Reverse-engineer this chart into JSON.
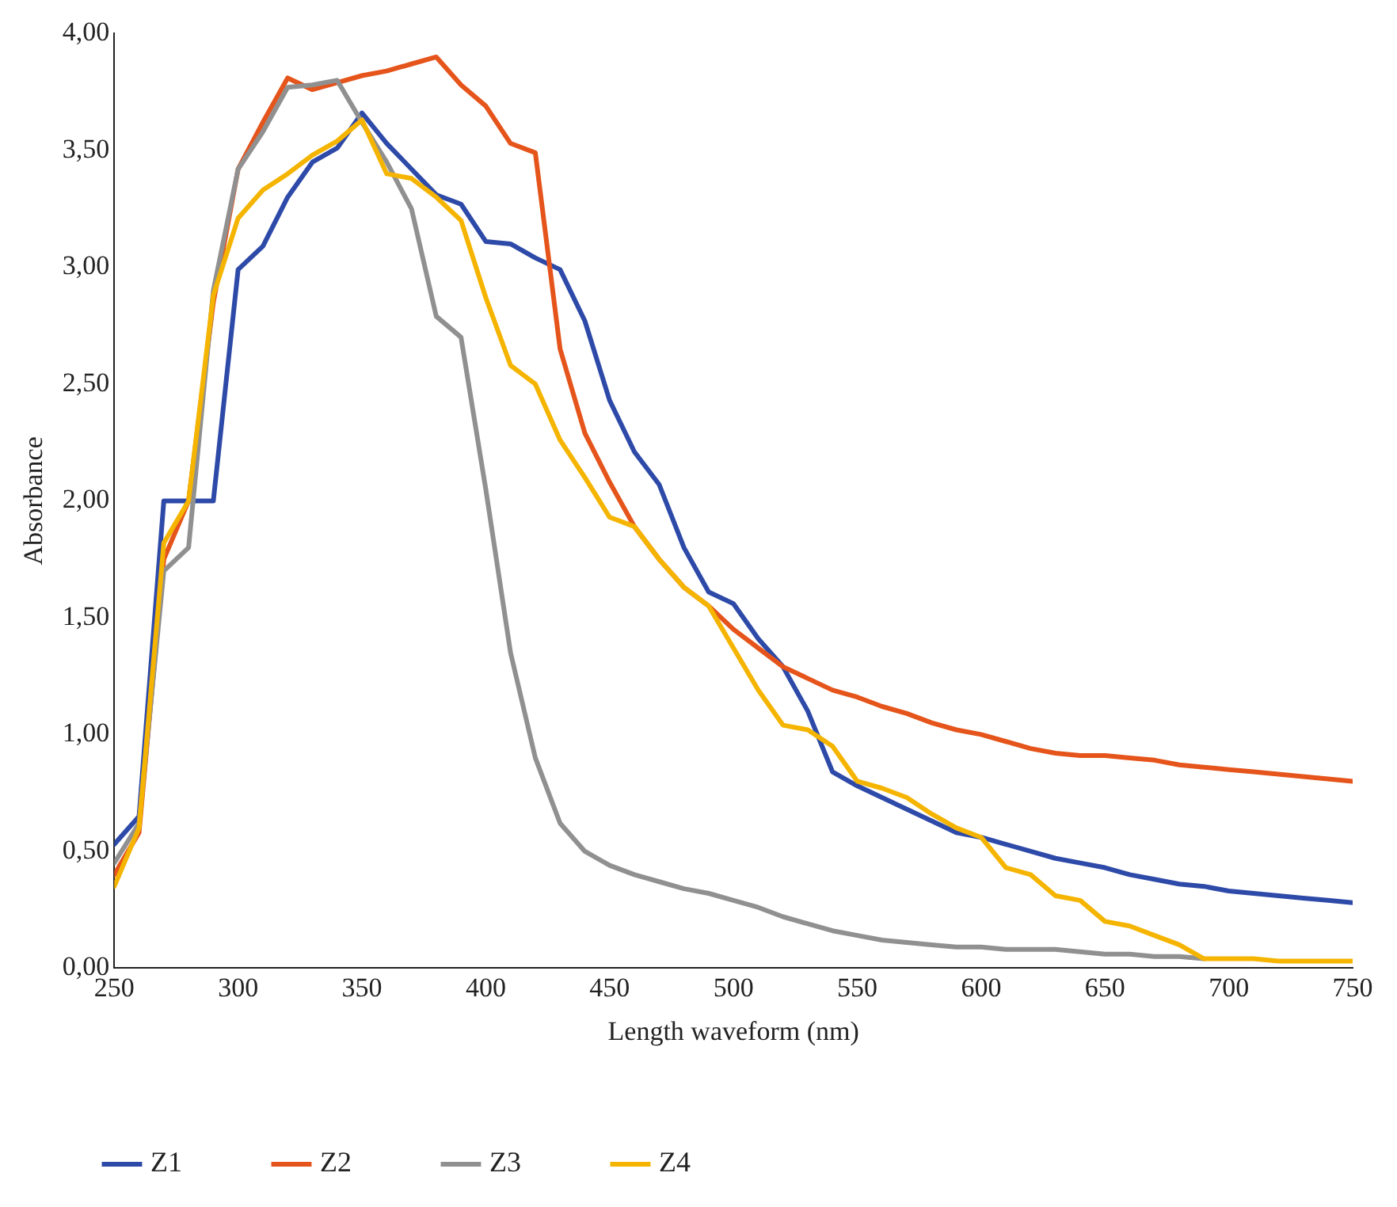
{
  "chart_data": {
    "type": "line",
    "xlabel": "Length waveform (nm)",
    "ylabel": "Absorbance",
    "x": [
      250,
      260,
      270,
      280,
      290,
      300,
      310,
      320,
      330,
      340,
      350,
      360,
      370,
      380,
      390,
      400,
      410,
      420,
      430,
      440,
      450,
      460,
      470,
      480,
      490,
      500,
      510,
      520,
      530,
      540,
      550,
      560,
      570,
      580,
      590,
      600,
      610,
      620,
      630,
      640,
      650,
      660,
      670,
      680,
      690,
      700,
      710,
      720,
      730,
      740,
      750
    ],
    "series": [
      {
        "name": "Z1",
        "color": "#2e4aa8",
        "values": [
          0.53,
          0.65,
          2.0,
          2.0,
          2.0,
          2.99,
          3.09,
          3.3,
          3.45,
          3.51,
          3.66,
          3.53,
          3.42,
          3.31,
          3.27,
          3.11,
          3.1,
          3.04,
          2.99,
          2.77,
          2.43,
          2.21,
          2.07,
          1.8,
          1.61,
          1.56,
          1.41,
          1.29,
          1.1,
          0.84,
          0.78,
          0.73,
          0.68,
          0.63,
          0.58,
          0.56,
          0.53,
          0.5,
          0.47,
          0.45,
          0.43,
          0.4,
          0.38,
          0.36,
          0.35,
          0.33,
          0.32,
          0.31,
          0.3,
          0.29,
          0.28
        ]
      },
      {
        "name": "Z2",
        "color": "#e5541b",
        "values": [
          0.4,
          0.58,
          1.75,
          2.0,
          2.85,
          3.42,
          3.62,
          3.81,
          3.76,
          3.79,
          3.82,
          3.84,
          3.87,
          3.9,
          3.78,
          3.69,
          3.53,
          3.49,
          2.65,
          2.29,
          2.08,
          1.89,
          1.75,
          1.63,
          1.55,
          1.45,
          1.37,
          1.29,
          1.24,
          1.19,
          1.16,
          1.12,
          1.09,
          1.05,
          1.02,
          1.0,
          0.97,
          0.94,
          0.92,
          0.91,
          0.91,
          0.9,
          0.89,
          0.87,
          0.86,
          0.85,
          0.84,
          0.83,
          0.82,
          0.81,
          0.8
        ]
      },
      {
        "name": "Z3",
        "color": "#909090",
        "values": [
          0.45,
          0.62,
          1.7,
          1.8,
          2.9,
          3.42,
          3.58,
          3.77,
          3.78,
          3.8,
          3.62,
          3.45,
          3.25,
          2.79,
          2.7,
          2.05,
          1.35,
          0.9,
          0.62,
          0.5,
          0.44,
          0.4,
          0.37,
          0.34,
          0.32,
          0.29,
          0.26,
          0.22,
          0.19,
          0.16,
          0.14,
          0.12,
          0.11,
          0.1,
          0.09,
          0.09,
          0.08,
          0.08,
          0.08,
          0.07,
          0.06,
          0.06,
          0.05,
          0.05,
          0.04,
          null,
          null,
          null,
          null,
          null,
          null
        ]
      },
      {
        "name": "Z4",
        "color": "#f5b400",
        "values": [
          0.35,
          0.6,
          1.82,
          2.0,
          2.88,
          3.21,
          3.33,
          3.4,
          3.48,
          3.54,
          3.63,
          3.4,
          3.38,
          3.3,
          3.2,
          2.87,
          2.58,
          2.5,
          2.26,
          2.1,
          1.93,
          1.89,
          1.75,
          1.63,
          1.55,
          1.37,
          1.19,
          1.04,
          1.02,
          0.95,
          0.8,
          0.77,
          0.73,
          0.66,
          0.6,
          0.56,
          0.43,
          0.4,
          0.31,
          0.29,
          0.2,
          0.18,
          0.14,
          0.1,
          0.04,
          0.04,
          0.04,
          0.03,
          0.03,
          0.03,
          0.03
        ]
      }
    ],
    "xlim": [
      250,
      750
    ],
    "xticks": [
      250,
      300,
      350,
      400,
      450,
      500,
      550,
      600,
      650,
      700,
      750
    ],
    "ylim": [
      0,
      4
    ],
    "yticks": [
      {
        "value": 0,
        "label": "0,00"
      },
      {
        "value": 0.5,
        "label": "0,50"
      },
      {
        "value": 1,
        "label": "1,00"
      },
      {
        "value": 1.5,
        "label": "1,50"
      },
      {
        "value": 2,
        "label": "2,00"
      },
      {
        "value": 2.5,
        "label": "2,50"
      },
      {
        "value": 3,
        "label": "3,00"
      },
      {
        "value": 3.5,
        "label": "3,50"
      },
      {
        "value": 4,
        "label": "4,00"
      }
    ],
    "grid": false,
    "legend": "bottom",
    "marker": "none",
    "line_style": "solid"
  }
}
